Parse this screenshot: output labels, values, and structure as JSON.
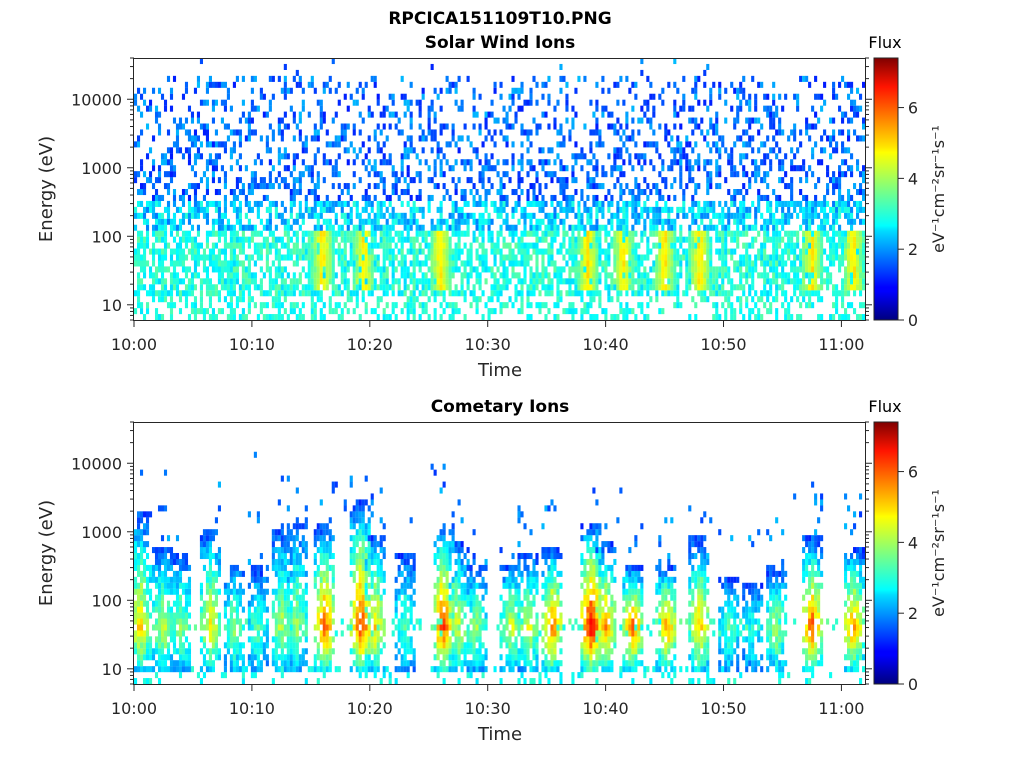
{
  "figure_title": "RPCICA151109T10.PNG",
  "colors": {
    "colormap": "jet",
    "background": "#ffffff",
    "axes": "#262626"
  },
  "chart_data": [
    {
      "type": "heatmap",
      "title": "Solar Wind Ions",
      "xlabel": "Time",
      "ylabel": "Energy (eV)",
      "y_scale": "log",
      "x_tick_labels": [
        "10:00",
        "10:10",
        "10:20",
        "10:30",
        "10:40",
        "10:50",
        "11:00"
      ],
      "x_tick_minutes": [
        0,
        10,
        20,
        30,
        40,
        50,
        60
      ],
      "xlim_minutes": [
        0,
        62
      ],
      "y_tick_labels": [
        "10",
        "100",
        "1000",
        "10000"
      ],
      "y_tick_values": [
        10,
        100,
        1000,
        10000
      ],
      "ylim": [
        6,
        40000
      ],
      "grid": false,
      "colorbar": {
        "title": "Flux",
        "label": "eV⁻¹cm⁻²sr⁻¹s⁻¹",
        "tick_labels": [
          "0",
          "2",
          "4",
          "6"
        ],
        "tick_values": [
          0,
          2,
          4,
          6
        ],
        "range": [
          0,
          7.4
        ]
      },
      "pattern": {
        "description": "dense low-flux (~1-2) speckle over 300-30000 eV, cyan-green (~2.5-3.5) flux below 300 eV, green-yellow enhancements at ~20-80 eV",
        "enhancements_minutes": [
          16,
          19.5,
          26,
          38.5,
          41.5,
          45,
          48,
          57.5,
          61
        ]
      }
    },
    {
      "type": "heatmap",
      "title": "Cometary Ions",
      "xlabel": "Time",
      "ylabel": "Energy (eV)",
      "y_scale": "log",
      "x_tick_labels": [
        "10:00",
        "10:10",
        "10:20",
        "10:30",
        "10:40",
        "10:50",
        "11:00"
      ],
      "x_tick_minutes": [
        0,
        10,
        20,
        30,
        40,
        50,
        60
      ],
      "xlim_minutes": [
        0,
        62
      ],
      "y_tick_labels": [
        "10",
        "100",
        "1000",
        "10000"
      ],
      "y_tick_values": [
        10,
        100,
        1000,
        10000
      ],
      "ylim": [
        6,
        40000
      ],
      "grid": false,
      "colorbar": {
        "title": "Flux",
        "label": "eV⁻¹cm⁻²sr⁻¹s⁻¹",
        "tick_labels": [
          "0",
          "2",
          "4",
          "6"
        ],
        "tick_values": [
          0,
          2,
          4,
          6
        ],
        "range": [
          0,
          7.4
        ]
      },
      "bursts": [
        {
          "t_minutes": 0.5,
          "peak_flux": 5.0,
          "top_eV": 1500
        },
        {
          "t_minutes": 2.5,
          "peak_flux": 4.5,
          "top_eV": 500
        },
        {
          "t_minutes": 4.0,
          "peak_flux": 4.0,
          "top_eV": 400
        },
        {
          "t_minutes": 6.5,
          "peak_flux": 4.8,
          "top_eV": 900
        },
        {
          "t_minutes": 8.5,
          "peak_flux": 4.0,
          "top_eV": 300
        },
        {
          "t_minutes": 10.5,
          "peak_flux": 3.5,
          "top_eV": 250
        },
        {
          "t_minutes": 12.5,
          "peak_flux": 4.2,
          "top_eV": 900
        },
        {
          "t_minutes": 13.8,
          "peak_flux": 4.0,
          "top_eV": 1200
        },
        {
          "t_minutes": 16.2,
          "peak_flux": 6.0,
          "top_eV": 1100
        },
        {
          "t_minutes": 19.3,
          "peak_flux": 6.2,
          "top_eV": 2500
        },
        {
          "t_minutes": 20.5,
          "peak_flux": 5.0,
          "top_eV": 800
        },
        {
          "t_minutes": 23.0,
          "peak_flux": 3.5,
          "top_eV": 400
        },
        {
          "t_minutes": 26.2,
          "peak_flux": 6.2,
          "top_eV": 1200
        },
        {
          "t_minutes": 27.5,
          "peak_flux": 4.5,
          "top_eV": 600
        },
        {
          "t_minutes": 29.0,
          "peak_flux": 4.0,
          "top_eV": 300
        },
        {
          "t_minutes": 32.0,
          "peak_flux": 4.5,
          "top_eV": 300
        },
        {
          "t_minutes": 33.5,
          "peak_flux": 4.5,
          "top_eV": 400
        },
        {
          "t_minutes": 35.5,
          "peak_flux": 5.8,
          "top_eV": 500
        },
        {
          "t_minutes": 38.8,
          "peak_flux": 6.8,
          "top_eV": 1200
        },
        {
          "t_minutes": 40.0,
          "peak_flux": 5.5,
          "top_eV": 600
        },
        {
          "t_minutes": 42.3,
          "peak_flux": 5.8,
          "top_eV": 300
        },
        {
          "t_minutes": 45.2,
          "peak_flux": 5.5,
          "top_eV": 300
        },
        {
          "t_minutes": 48.0,
          "peak_flux": 5.2,
          "top_eV": 700
        },
        {
          "t_minutes": 50.5,
          "peak_flux": 3.5,
          "top_eV": 200
        },
        {
          "t_minutes": 52.5,
          "peak_flux": 3.2,
          "top_eV": 150
        },
        {
          "t_minutes": 54.5,
          "peak_flux": 4.2,
          "top_eV": 250
        },
        {
          "t_minutes": 57.5,
          "peak_flux": 6.0,
          "top_eV": 700
        },
        {
          "t_minutes": 61.0,
          "peak_flux": 5.5,
          "top_eV": 500
        }
      ]
    }
  ]
}
